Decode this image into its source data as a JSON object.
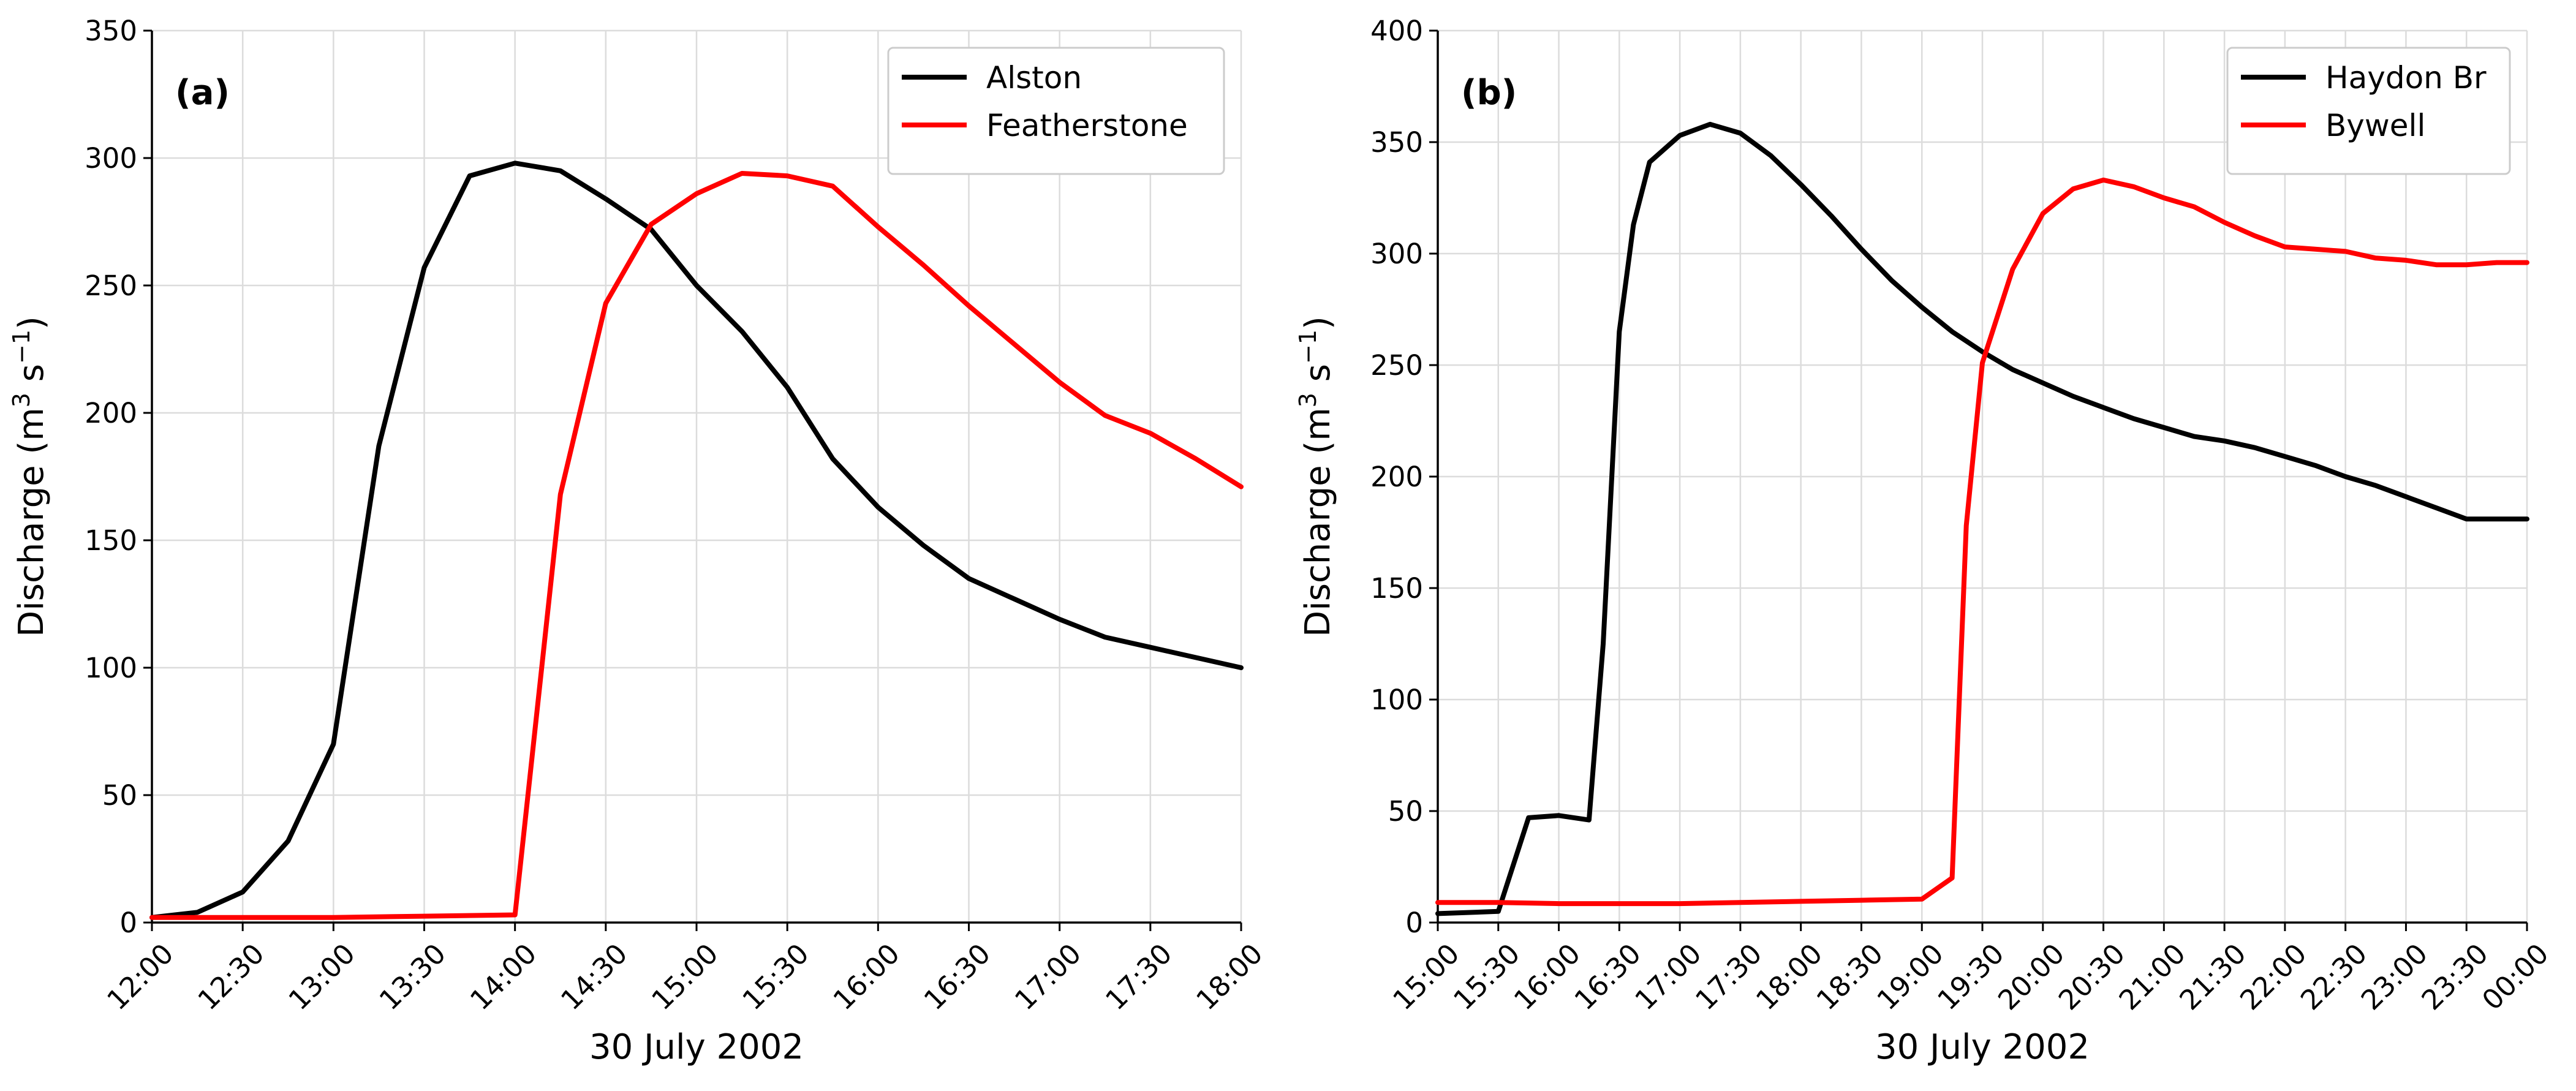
{
  "chart_data": [
    {
      "type": "line",
      "panel_label": "(a)",
      "xlabel": "30 July 2002",
      "ylabel": "Discharge (m",
      "ylabel_sup1": "3",
      "ylabel_mid": " s",
      "ylabel_sup2": "−1",
      "ylabel_end": ")",
      "xlim": [
        "12:00",
        "18:00"
      ],
      "ylim": [
        0,
        350
      ],
      "grid": true,
      "legend_position": "top-right",
      "x_ticks": [
        "12:00",
        "12:30",
        "13:00",
        "13:30",
        "14:00",
        "14:30",
        "15:00",
        "15:30",
        "16:00",
        "16:30",
        "17:00",
        "17:30",
        "18:00"
      ],
      "y_ticks": [
        "0",
        "50",
        "100",
        "150",
        "200",
        "250",
        "300",
        "350"
      ],
      "series": [
        {
          "name": "Alston",
          "color": "#000000",
          "x": [
            "12:00",
            "12:15",
            "12:30",
            "12:45",
            "13:00",
            "13:15",
            "13:30",
            "13:45",
            "14:00",
            "14:15",
            "14:30",
            "14:45",
            "15:00",
            "15:15",
            "15:30",
            "15:45",
            "16:00",
            "16:15",
            "16:30",
            "16:45",
            "17:00",
            "17:15",
            "17:30",
            "17:45",
            "18:00"
          ],
          "y": [
            2,
            4,
            12,
            32,
            70,
            187,
            257,
            293,
            298,
            295,
            284,
            272,
            250,
            232,
            210,
            182,
            163,
            148,
            135,
            127,
            119,
            112,
            108,
            104,
            100
          ]
        },
        {
          "name": "Featherstone",
          "color": "#ff0000",
          "x": [
            "12:00",
            "12:30",
            "13:00",
            "13:30",
            "14:00",
            "14:15",
            "14:30",
            "14:45",
            "15:00",
            "15:15",
            "15:30",
            "15:45",
            "16:00",
            "16:15",
            "16:30",
            "16:45",
            "17:00",
            "17:15",
            "17:30",
            "17:45",
            "18:00"
          ],
          "y": [
            2,
            2,
            2,
            2.5,
            3,
            168,
            243,
            274,
            286,
            294,
            293,
            289,
            273,
            258,
            242,
            227,
            212,
            199,
            192,
            182,
            171
          ]
        }
      ]
    },
    {
      "type": "line",
      "panel_label": "(b)",
      "xlabel": "30 July 2002",
      "ylabel": "Discharge (m",
      "ylabel_sup1": "3",
      "ylabel_mid": " s",
      "ylabel_sup2": "−1",
      "ylabel_end": ")",
      "xlim": [
        "15:00",
        "00:00"
      ],
      "ylim": [
        0,
        400
      ],
      "grid": true,
      "legend_position": "top-right",
      "x_ticks": [
        "15:00",
        "15:30",
        "16:00",
        "16:30",
        "17:00",
        "17:30",
        "18:00",
        "18:30",
        "19:00",
        "19:30",
        "20:00",
        "20:30",
        "21:00",
        "21:30",
        "22:00",
        "22:30",
        "23:00",
        "23:30",
        "00:00"
      ],
      "y_ticks": [
        "0",
        "50",
        "100",
        "150",
        "200",
        "250",
        "300",
        "350",
        "400"
      ],
      "series": [
        {
          "name": "Haydon Br",
          "color": "#000000",
          "x": [
            "15:00",
            "15:30",
            "15:45",
            "16:00",
            "16:15",
            "16:22",
            "16:30",
            "16:37",
            "16:45",
            "17:00",
            "17:15",
            "17:30",
            "17:45",
            "18:00",
            "18:15",
            "18:30",
            "18:45",
            "19:00",
            "19:15",
            "19:30",
            "19:45",
            "20:00",
            "20:15",
            "20:30",
            "20:45",
            "21:00",
            "21:15",
            "21:30",
            "21:45",
            "22:00",
            "22:15",
            "22:30",
            "22:45",
            "23:00",
            "23:15",
            "23:30",
            "23:45",
            "00:00"
          ],
          "y": [
            4,
            5,
            47,
            48,
            46,
            125,
            265,
            313,
            341,
            353,
            358,
            354,
            344,
            331,
            317,
            302,
            288,
            276,
            265,
            256,
            248,
            242,
            236,
            231,
            226,
            222,
            218,
            216,
            213,
            209,
            205,
            200,
            196,
            191,
            186,
            181,
            181,
            181
          ]
        },
        {
          "name": "Bywell",
          "color": "#ff0000",
          "x": [
            "15:00",
            "15:30",
            "16:00",
            "16:30",
            "17:00",
            "17:30",
            "18:00",
            "18:30",
            "19:00",
            "19:15",
            "19:22",
            "19:30",
            "19:45",
            "20:00",
            "20:15",
            "20:30",
            "20:45",
            "21:00",
            "21:15",
            "21:30",
            "21:45",
            "22:00",
            "22:15",
            "22:30",
            "22:45",
            "23:00",
            "23:15",
            "23:30",
            "23:45",
            "00:00"
          ],
          "y": [
            9,
            9,
            8.5,
            8.5,
            8.5,
            9,
            9.5,
            10,
            10.5,
            20,
            178,
            251,
            293,
            318,
            329,
            333,
            330,
            325,
            321,
            314,
            308,
            303,
            302,
            301,
            298,
            297,
            295,
            295,
            296,
            296
          ]
        }
      ]
    }
  ]
}
